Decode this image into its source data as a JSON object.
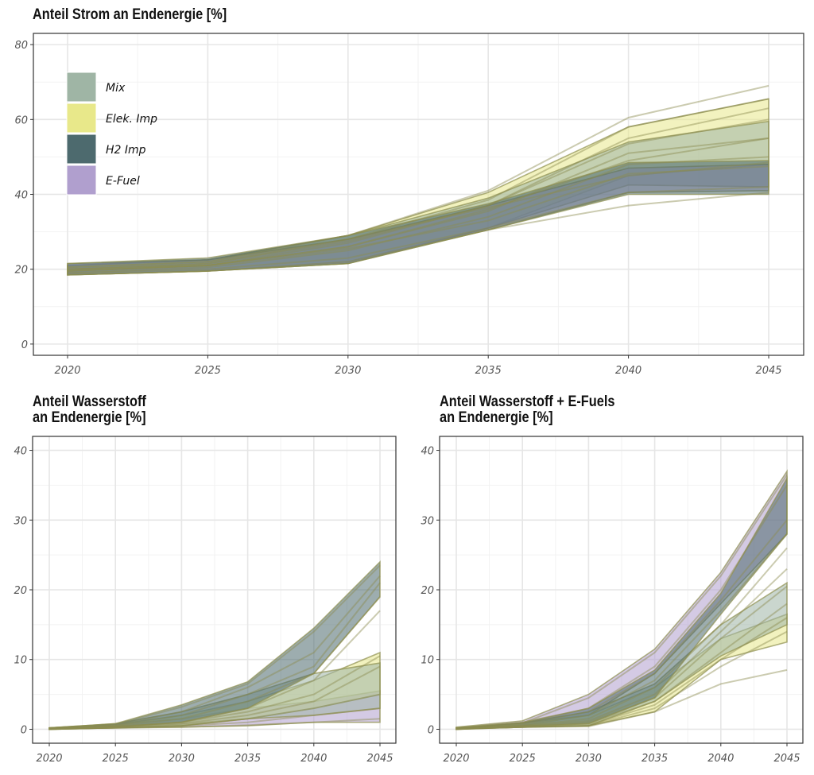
{
  "legend": [
    {
      "name": "Mix",
      "color": "#9fb5a5"
    },
    {
      "name": "Elek. Imp",
      "color": "#e8e88a"
    },
    {
      "name": "H2 Imp",
      "color": "#4d6a6e"
    },
    {
      "name": "E-Fuel",
      "color": "#b09fce"
    }
  ],
  "chart_data": [
    {
      "id": "strom",
      "type": "area",
      "title": "Anteil Strom an Endenergie [%]",
      "x": [
        2020,
        2025,
        2030,
        2035,
        2040,
        2045
      ],
      "ylim": [
        -3,
        83
      ],
      "yticks": [
        0,
        20,
        40,
        60,
        80
      ],
      "xticks": [
        2020,
        2025,
        2030,
        2035,
        2040,
        2045
      ],
      "legend_position": "top-left",
      "grid": true,
      "series": [
        {
          "name": "Elek. Imp",
          "lower": [
            18.5,
            19.5,
            22,
            31,
            45,
            48
          ],
          "upper": [
            21,
            22.5,
            29,
            40.5,
            58,
            65.5
          ],
          "color": "#e8e88a"
        },
        {
          "name": "Mix",
          "lower": [
            18.5,
            19.5,
            21.5,
            31,
            42.5,
            42
          ],
          "upper": [
            21,
            22.5,
            29,
            39,
            54,
            59.5
          ],
          "color": "#9fb5a5"
        },
        {
          "name": "E-Fuel",
          "lower": [
            18.5,
            19.5,
            21.5,
            30.5,
            40.5,
            41
          ],
          "upper": [
            21.5,
            22.5,
            28,
            37,
            47,
            48
          ],
          "color": "#b09fce"
        },
        {
          "name": "H2 Imp",
          "lower": [
            18.5,
            19.5,
            21.5,
            30.5,
            40,
            40
          ],
          "upper": [
            21.5,
            23,
            29,
            37.5,
            48.5,
            49
          ],
          "color": "#4d6a6e"
        }
      ],
      "trajectories": [
        [
          20.5,
          22,
          29,
          41,
          60.5,
          69
        ],
        [
          20,
          21.5,
          28,
          38.5,
          58,
          65.5
        ],
        [
          19.5,
          21,
          27,
          37,
          55,
          63
        ],
        [
          20,
          21.5,
          27.5,
          37,
          53.5,
          60
        ],
        [
          19.5,
          21,
          26,
          35.5,
          51,
          55
        ],
        [
          19,
          20.5,
          25,
          34,
          48,
          50
        ],
        [
          19.5,
          21,
          25.5,
          33,
          45.5,
          47.5
        ],
        [
          19,
          20,
          23,
          31,
          40.5,
          42
        ],
        [
          18.5,
          19.5,
          22,
          30.5,
          37,
          40.5
        ],
        [
          20,
          21,
          26,
          36,
          49,
          55
        ],
        [
          20.5,
          22,
          28,
          36.5,
          45,
          48.5
        ]
      ]
    },
    {
      "id": "wasserstoff",
      "type": "area",
      "title": "Anteil Wasserstoff\nan Endenergie [%]",
      "x": [
        2020,
        2025,
        2030,
        2035,
        2040,
        2045
      ],
      "ylim": [
        -2,
        42
      ],
      "yticks": [
        0,
        10,
        20,
        30,
        40
      ],
      "xticks": [
        2020,
        2025,
        2030,
        2035,
        2040,
        2045
      ],
      "grid": true,
      "series": [
        {
          "name": "E-Fuel",
          "lower": [
            0,
            0.2,
            0.3,
            0.5,
            1,
            1
          ],
          "upper": [
            0.2,
            0.7,
            1.5,
            3,
            4,
            5.5
          ],
          "color": "#b09fce"
        },
        {
          "name": "Elek. Imp",
          "lower": [
            0,
            0.2,
            0.5,
            1.5,
            3,
            5
          ],
          "upper": [
            0.2,
            0.7,
            2,
            4,
            7,
            11
          ],
          "color": "#e8e88a"
        },
        {
          "name": "Mix",
          "lower": [
            0,
            0.2,
            0.5,
            1.5,
            2,
            3
          ],
          "upper": [
            0.2,
            0.8,
            2.5,
            5,
            8,
            9.5
          ],
          "color": "#9fb5a5"
        },
        {
          "name": "H2 Imp",
          "lower": [
            0,
            0.3,
            1,
            3,
            8,
            19
          ],
          "upper": [
            0.2,
            0.8,
            3.5,
            6.8,
            14.5,
            24
          ],
          "color": "#4d6a6e"
        }
      ],
      "trajectories": [
        [
          0.1,
          0.7,
          3.2,
          6.5,
          14,
          23.5
        ],
        [
          0.1,
          0.6,
          2.5,
          6,
          11,
          22
        ],
        [
          0.1,
          0.5,
          2,
          5,
          9,
          21
        ],
        [
          0.1,
          0.5,
          1.5,
          4,
          8,
          19
        ],
        [
          0.1,
          0.4,
          1,
          3,
          7,
          17
        ],
        [
          0.1,
          0.4,
          1,
          2.5,
          5,
          10.5
        ],
        [
          0.1,
          0.3,
          0.8,
          2,
          4,
          9
        ],
        [
          0.1,
          0.3,
          0.7,
          1.5,
          3,
          5
        ],
        [
          0.1,
          0.2,
          0.5,
          1,
          2,
          3
        ],
        [
          0.1,
          0.2,
          0.3,
          0.6,
          1,
          1.5
        ]
      ]
    },
    {
      "id": "wasserstoff_efuels",
      "type": "area",
      "title": "Anteil Wasserstoff + E-Fuels\nan Endenergie [%]",
      "x": [
        2020,
        2025,
        2030,
        2035,
        2040,
        2045
      ],
      "ylim": [
        -2,
        42
      ],
      "yticks": [
        0,
        10,
        20,
        30,
        40
      ],
      "xticks": [
        2020,
        2025,
        2030,
        2035,
        2040,
        2045
      ],
      "grid": true,
      "series": [
        {
          "name": "E-Fuel",
          "lower": [
            0,
            0.5,
            2,
            8,
            18,
            28
          ],
          "upper": [
            0.3,
            1.2,
            5,
            11.5,
            22.5,
            37
          ],
          "color": "#b09fce"
        },
        {
          "name": "Elek. Imp",
          "lower": [
            0,
            0.3,
            0.5,
            2.5,
            10,
            12.5
          ],
          "upper": [
            0.2,
            0.9,
            2,
            6,
            13,
            16.5
          ],
          "color": "#e8e88a"
        },
        {
          "name": "Mix",
          "lower": [
            0,
            0.3,
            0.5,
            4,
            10.5,
            15
          ],
          "upper": [
            0.2,
            0.9,
            2.5,
            6.5,
            15,
            21
          ],
          "color": "#9fb5a5"
        },
        {
          "name": "H2 Imp",
          "lower": [
            0,
            0.4,
            0.8,
            4.5,
            16.5,
            28
          ],
          "upper": [
            0.2,
            1,
            3,
            8.5,
            19.5,
            36
          ],
          "color": "#4d6a6e"
        }
      ],
      "trajectories": [
        [
          0.1,
          0.9,
          4.5,
          11,
          22,
          36.5
        ],
        [
          0.1,
          0.8,
          3,
          9,
          20,
          35
        ],
        [
          0.1,
          0.7,
          2.5,
          8,
          18.5,
          30
        ],
        [
          0.1,
          0.6,
          2,
          7,
          17,
          28
        ],
        [
          0.1,
          0.5,
          1.5,
          6,
          15,
          26
        ],
        [
          0.1,
          0.5,
          1.2,
          5,
          14,
          23
        ],
        [
          0.1,
          0.4,
          1,
          4.5,
          13,
          20.5
        ],
        [
          0.1,
          0.4,
          0.8,
          4,
          11,
          18
        ],
        [
          0.1,
          0.3,
          0.6,
          3.5,
          10,
          16
        ],
        [
          0.1,
          0.3,
          0.5,
          3,
          9,
          14
        ],
        [
          0.1,
          0.3,
          0.4,
          2.5,
          6.5,
          8.5
        ]
      ]
    }
  ]
}
